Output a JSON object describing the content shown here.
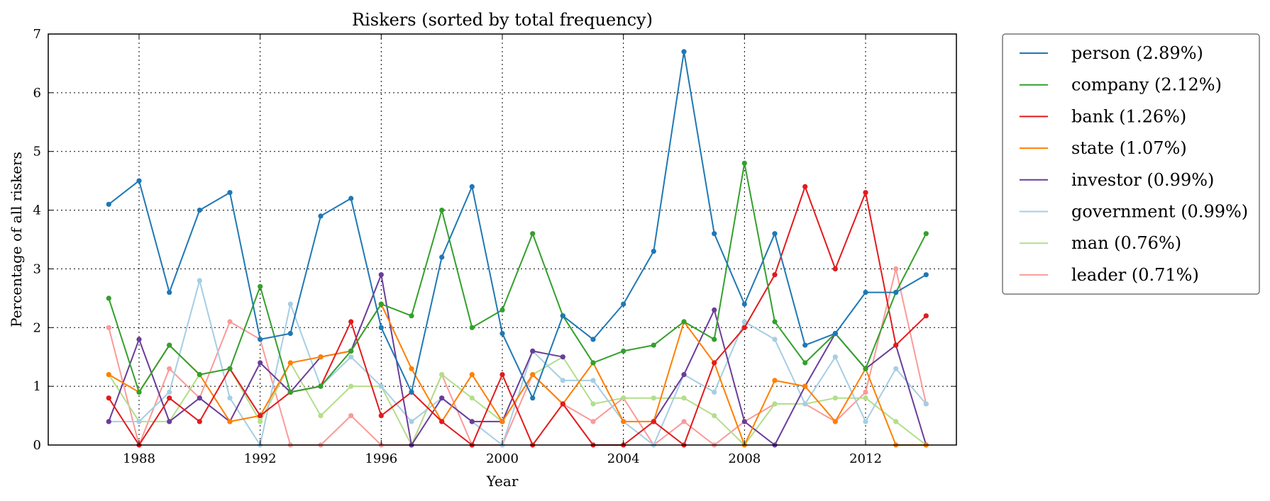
{
  "chart_data": {
    "type": "line",
    "title": "Riskers (sorted by total frequency)",
    "xlabel": "Year",
    "ylabel": "Percentage of all riskers",
    "xlim": [
      1985,
      2015
    ],
    "ylim": [
      0,
      7
    ],
    "xticks": [
      1988,
      1992,
      1996,
      2000,
      2004,
      2008,
      2012
    ],
    "yticks": [
      0,
      1,
      2,
      3,
      4,
      5,
      6,
      7
    ],
    "grid": true,
    "legend_position": "outside-top-right",
    "x": [
      1987,
      1988,
      1989,
      1990,
      1991,
      1992,
      1993,
      1994,
      1995,
      1996,
      1997,
      1998,
      1999,
      2000,
      2001,
      2002,
      2003,
      2004,
      2005,
      2006,
      2007,
      2008,
      2009,
      2010,
      2011,
      2012,
      2013,
      2014
    ],
    "series": [
      {
        "name": "person (2.89%)",
        "color": "#1f78b4",
        "values": [
          4.1,
          4.5,
          2.6,
          4.0,
          4.3,
          1.8,
          1.9,
          3.9,
          4.2,
          2.0,
          0.9,
          3.2,
          4.4,
          1.9,
          0.8,
          2.2,
          1.8,
          2.4,
          3.3,
          6.7,
          3.6,
          2.4,
          3.6,
          1.7,
          1.9,
          2.6,
          2.6,
          2.9
        ]
      },
      {
        "name": "company (2.12%)",
        "color": "#33a02c",
        "values": [
          2.5,
          0.9,
          1.7,
          1.2,
          1.3,
          2.7,
          0.9,
          1.0,
          1.6,
          2.4,
          2.2,
          4.0,
          2.0,
          2.3,
          3.6,
          2.2,
          1.4,
          1.6,
          1.7,
          2.1,
          1.8,
          4.8,
          2.1,
          1.4,
          1.9,
          1.3,
          2.6,
          3.6
        ]
      },
      {
        "name": "bank (1.26%)",
        "color": "#e31a1c",
        "values": [
          0.8,
          0.0,
          0.8,
          0.4,
          1.3,
          0.5,
          0.9,
          1.0,
          2.1,
          0.5,
          0.9,
          0.4,
          0.0,
          1.2,
          0.0,
          0.7,
          0.0,
          0.0,
          0.4,
          0.0,
          1.4,
          2.0,
          2.9,
          4.4,
          3.0,
          4.3,
          1.7,
          2.2
        ]
      },
      {
        "name": "state (1.07%)",
        "color": "#ff7f00",
        "values": [
          1.2,
          0.9,
          1.7,
          1.2,
          0.4,
          0.5,
          1.4,
          1.5,
          1.6,
          2.4,
          1.3,
          0.4,
          1.2,
          0.4,
          1.2,
          0.7,
          1.4,
          0.4,
          0.4,
          2.1,
          1.4,
          0.0,
          1.1,
          1.0,
          0.4,
          1.3,
          0.0,
          0.0
        ]
      },
      {
        "name": "investor (0.99%)",
        "color": "#6a3d9a",
        "values": [
          0.4,
          1.8,
          0.4,
          0.8,
          0.4,
          1.4,
          0.9,
          1.5,
          1.6,
          2.9,
          0.0,
          0.8,
          0.4,
          0.4,
          1.6,
          1.5,
          null,
          null,
          0.4,
          1.2,
          2.3,
          0.4,
          0.0,
          1.0,
          1.9,
          1.3,
          1.7,
          0.0
        ]
      },
      {
        "name": "government (0.99%)",
        "color": "#a6cee3",
        "values": [
          0.4,
          0.4,
          0.9,
          2.8,
          0.8,
          0.0,
          2.4,
          1.0,
          1.5,
          1.0,
          0.4,
          0.8,
          0.4,
          0.0,
          1.6,
          1.1,
          1.1,
          0.4,
          0.0,
          1.2,
          0.9,
          2.1,
          1.8,
          0.7,
          1.5,
          0.4,
          1.3,
          0.7
        ]
      },
      {
        "name": "man (0.76%)",
        "color": "#b2df8a",
        "values": [
          1.2,
          0.4,
          0.4,
          1.2,
          1.3,
          0.4,
          1.4,
          0.5,
          1.0,
          1.0,
          0.0,
          1.2,
          0.8,
          0.4,
          1.2,
          1.5,
          0.7,
          0.8,
          0.8,
          0.8,
          0.5,
          0.0,
          0.7,
          0.7,
          0.8,
          0.8,
          0.4,
          0.0
        ]
      },
      {
        "name": "leader (0.71%)",
        "color": "#fb9a99",
        "values": [
          2.0,
          0.0,
          1.3,
          0.8,
          2.1,
          1.8,
          0.0,
          0.0,
          0.5,
          0.0,
          0.0,
          1.2,
          0.0,
          0.0,
          1.2,
          0.7,
          0.4,
          0.8,
          0.0,
          0.4,
          0.0,
          0.4,
          0.7,
          0.7,
          0.4,
          0.9,
          3.0,
          0.7
        ]
      }
    ]
  }
}
